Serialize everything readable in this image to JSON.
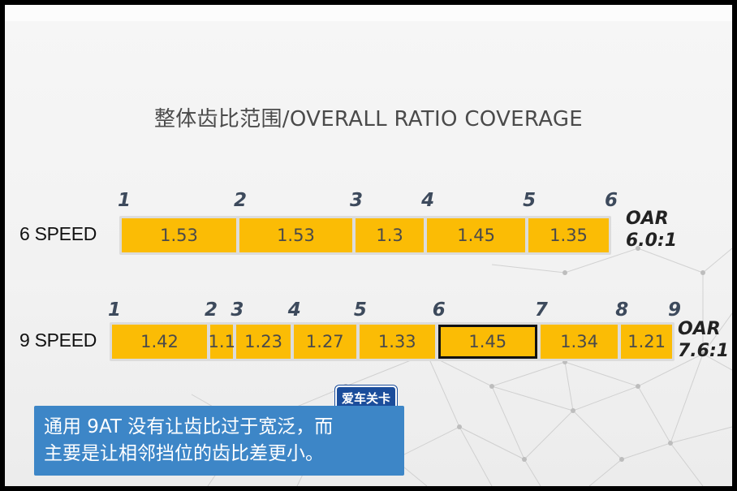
{
  "chart_data": {
    "type": "bar",
    "title": "整体齿比范围/OVERALL RATIO COVERAGE",
    "series": [
      {
        "name": "6 SPEED",
        "gears": [
          "1",
          "2",
          "3",
          "4",
          "5",
          "6"
        ],
        "step_ratios": [
          1.53,
          1.53,
          1.3,
          1.45,
          1.35
        ],
        "step_labels": [
          "1.53",
          "1.53",
          "1.3",
          "1.45",
          "1.35"
        ],
        "oar_line1": "OAR",
        "oar_line2": "6.0:1"
      },
      {
        "name": "9 SPEED",
        "gears": [
          "1",
          "2",
          "3",
          "4",
          "5",
          "6",
          "7",
          "8",
          "9"
        ],
        "step_ratios": [
          1.42,
          1.1,
          1.23,
          1.27,
          1.33,
          1.45,
          1.34,
          1.21
        ],
        "step_labels": [
          "1.42",
          "1.1",
          "1.23",
          "1.27",
          "1.33",
          "1.45",
          "1.34",
          "1.21"
        ],
        "highlighted_step": "1.45",
        "oar_line1": "OAR",
        "oar_line2": "7.6:1"
      }
    ],
    "colors": {
      "bar": "#fbbc05",
      "track": "#dcdcdc",
      "gear_number": "#3d4a5c",
      "highlight_border": "#111111"
    }
  },
  "watermark": "爱车关卡",
  "caption": {
    "line1": "通用 9AT 没有让齿比过于宽泛，而",
    "line2": "主要是让相邻挡位的齿比差更小。",
    "background": "#3d86c7"
  }
}
